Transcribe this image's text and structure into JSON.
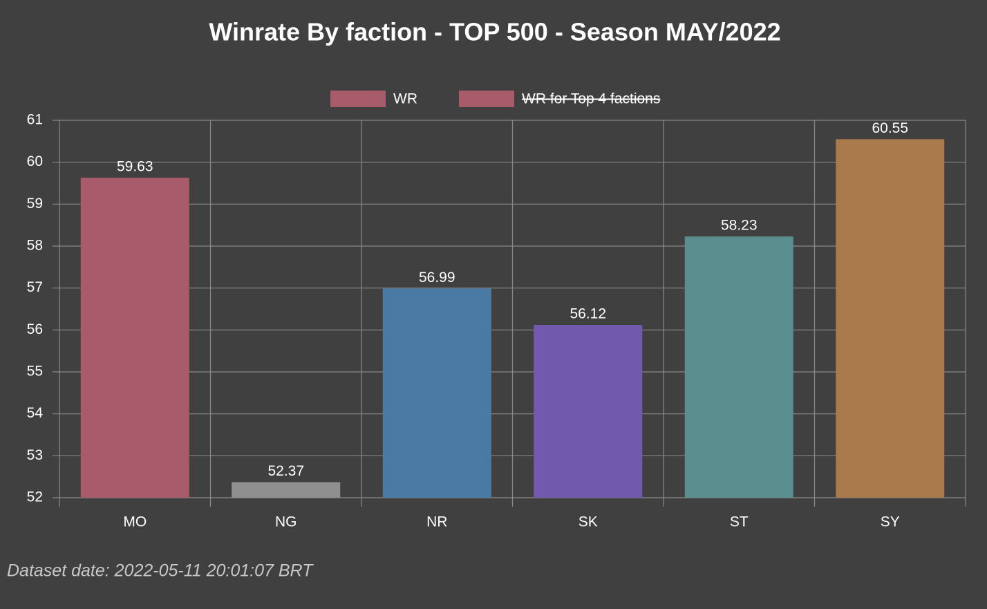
{
  "chart_data": {
    "type": "bar",
    "title": "Winrate By faction - TOP 500 - Season MAY/2022",
    "categories": [
      "MO",
      "NG",
      "NR",
      "SK",
      "ST",
      "SY"
    ],
    "series": [
      {
        "name": "WR",
        "values": [
          59.63,
          52.37,
          56.99,
          56.12,
          58.23,
          60.55
        ],
        "colors": [
          "#a85b6a",
          "#8f8f8f",
          "#4a7ba5",
          "#7159ad",
          "#5b8e8e",
          "#a97a4b"
        ]
      }
    ],
    "legend": [
      {
        "name": "WR",
        "color": "#a85b6a",
        "hidden": false
      },
      {
        "name": "WR for Top 4 factions",
        "color": "#a85b6a",
        "hidden": true
      }
    ],
    "ylim": [
      52,
      61
    ],
    "yticks": [
      52,
      53,
      54,
      55,
      56,
      57,
      58,
      59,
      60,
      61
    ],
    "grid": true,
    "data_labels": true,
    "footnote": "Dataset date: 2022-05-11 20:01:07 BRT"
  }
}
